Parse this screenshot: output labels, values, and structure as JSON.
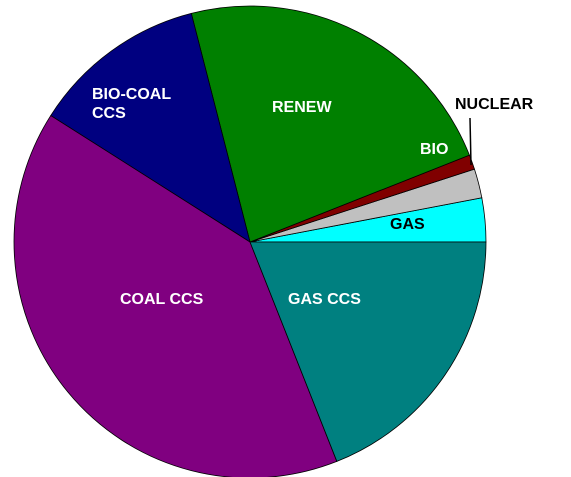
{
  "chart_data": {
    "type": "pie",
    "categories": [
      "GAS",
      "NUCLEAR",
      "BIO",
      "RENEW",
      "BIO-COAL CCS",
      "COAL CCS",
      "GAS CCS"
    ],
    "values": [
      3,
      2,
      1,
      23,
      12,
      40,
      19
    ],
    "colors": [
      "#00ffff",
      "#c0c0c0",
      "#800000",
      "#008000",
      "#000080",
      "#800080",
      "#008080"
    ]
  }
}
